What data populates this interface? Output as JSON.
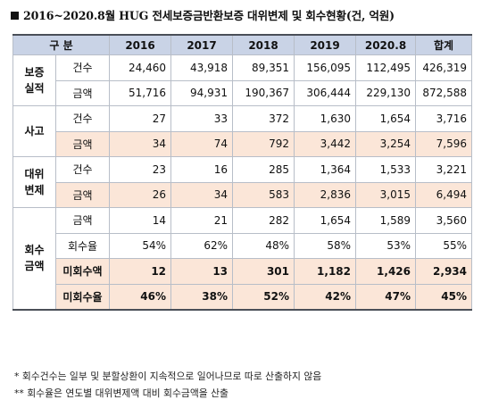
{
  "title": "2016~2020.8월 HUG 전세보증금반환보증 대위변제 및 회수현황(건, 억원)",
  "header": {
    "category": "구 분",
    "years": [
      "2016",
      "2017",
      "2018",
      "2019",
      "2020.8",
      "합계"
    ]
  },
  "groups": [
    {
      "label": "보증\n실적",
      "rows": [
        {
          "sub": "건수",
          "values": [
            "24,460",
            "43,918",
            "89,351",
            "156,095",
            "112,495",
            "426,319"
          ],
          "highlight": false,
          "bold": false
        },
        {
          "sub": "금액",
          "values": [
            "51,716",
            "94,931",
            "190,367",
            "306,444",
            "229,130",
            "872,588"
          ],
          "highlight": false,
          "bold": false
        }
      ]
    },
    {
      "label": "사고",
      "rows": [
        {
          "sub": "건수",
          "values": [
            "27",
            "33",
            "372",
            "1,630",
            "1,654",
            "3,716"
          ],
          "highlight": false,
          "bold": false
        },
        {
          "sub": "금액",
          "values": [
            "34",
            "74",
            "792",
            "3,442",
            "3,254",
            "7,596"
          ],
          "highlight": true,
          "bold": false
        }
      ]
    },
    {
      "label": "대위\n변제",
      "rows": [
        {
          "sub": "건수",
          "values": [
            "23",
            "16",
            "285",
            "1,364",
            "1,533",
            "3,221"
          ],
          "highlight": false,
          "bold": false
        },
        {
          "sub": "금액",
          "values": [
            "26",
            "34",
            "583",
            "2,836",
            "3,015",
            "6,494"
          ],
          "highlight": true,
          "bold": false
        }
      ]
    },
    {
      "label": "회수\n금액",
      "rows": [
        {
          "sub": "금액",
          "values": [
            "14",
            "21",
            "282",
            "1,654",
            "1,589",
            "3,560"
          ],
          "highlight": false,
          "bold": false
        },
        {
          "sub": "회수율",
          "values": [
            "54%",
            "62%",
            "48%",
            "58%",
            "53%",
            "55%"
          ],
          "highlight": false,
          "bold": false
        },
        {
          "sub": "미회수액",
          "values": [
            "12",
            "13",
            "301",
            "1,182",
            "1,426",
            "2,934"
          ],
          "highlight": true,
          "bold": true
        },
        {
          "sub": "미회수율",
          "values": [
            "46%",
            "38%",
            "52%",
            "42%",
            "47%",
            "45%"
          ],
          "highlight": true,
          "bold": true
        }
      ]
    }
  ],
  "notes": [
    "*  회수건수는 일부 및 분할상환이 지속적으로 일어나므로 따로 산출하지 않음",
    "**  회수율은 연도별 대위변제액 대비 회수금액을 산출"
  ],
  "colors": {
    "header_bg": "#c9d3e6",
    "highlight_bg": "#fbe6d8"
  }
}
